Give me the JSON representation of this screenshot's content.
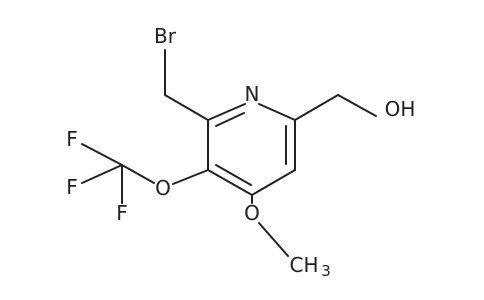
{
  "atoms": [
    {
      "label": "Br"
    },
    {
      "label": "N"
    },
    {
      "label": "OH"
    },
    {
      "label": "O"
    },
    {
      "label": "O"
    },
    {
      "label": "CH",
      "subscript": "3"
    },
    {
      "label": "F"
    },
    {
      "label": "F"
    },
    {
      "label": "F"
    }
  ]
}
